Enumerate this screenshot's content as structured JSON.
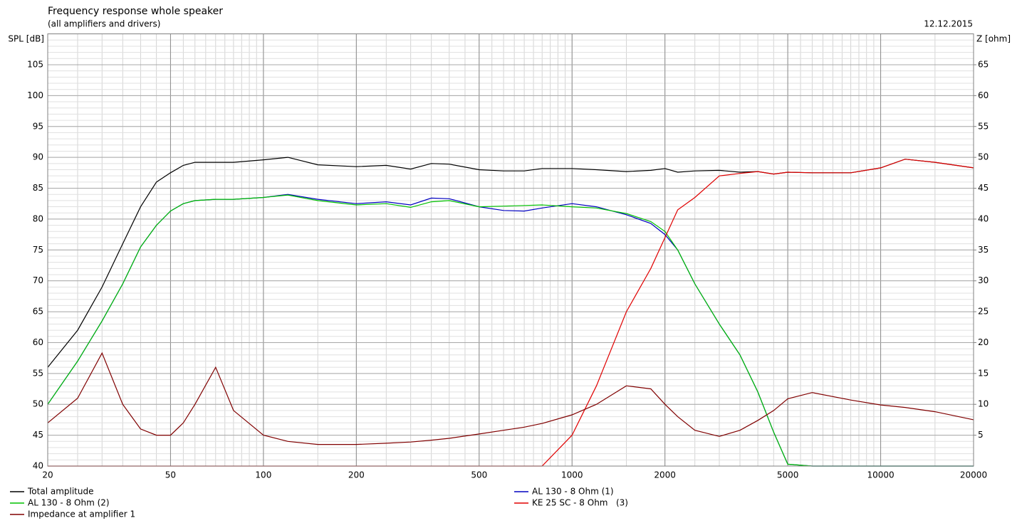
{
  "chart_data": {
    "type": "line",
    "title": "Frequency response whole speaker",
    "subtitle": "(all amplifiers and drivers)",
    "date": "12.12.2015",
    "y_label": "SPL [dB]",
    "y2_label": "Z [ohm]",
    "x_scale": "log",
    "grid": true,
    "legend_position": "bottom",
    "xlim": [
      20,
      20000
    ],
    "xticks": [
      20,
      50,
      100,
      200,
      500,
      1000,
      2000,
      5000,
      10000,
      20000
    ],
    "ylim": [
      40,
      110
    ],
    "yticks": [
      40,
      45,
      50,
      55,
      60,
      65,
      70,
      75,
      80,
      85,
      90,
      95,
      100,
      105
    ],
    "y2lim": [
      0,
      70
    ],
    "y2ticks": [
      5,
      10,
      15,
      20,
      25,
      30,
      35,
      40,
      45,
      50,
      55,
      60,
      65
    ],
    "x": [
      20,
      25,
      30,
      35,
      40,
      45,
      50,
      55,
      60,
      70,
      80,
      100,
      120,
      150,
      200,
      250,
      300,
      350,
      400,
      500,
      600,
      700,
      800,
      1000,
      1200,
      1500,
      1800,
      2000,
      2200,
      2500,
      3000,
      3500,
      4000,
      4500,
      5000,
      6000,
      8000,
      10000,
      12000,
      15000,
      20000
    ],
    "series": [
      {
        "name": "Total amplitude",
        "color": "#000000",
        "values": [
          56,
          62,
          69,
          76,
          82,
          86,
          87.5,
          88.7,
          89.2,
          89.2,
          89.2,
          89.6,
          90,
          88.8,
          88.5,
          88.7,
          88.1,
          89,
          88.9,
          88,
          87.8,
          87.8,
          88.2,
          88.2,
          88,
          87.7,
          87.9,
          88.2,
          87.6,
          87.8,
          87.9,
          87.6,
          87.7,
          87.3,
          87.6,
          87.5,
          87.5,
          88.3,
          89.7,
          89.2,
          88.3
        ]
      },
      {
        "name": "AL 130 - 8 Ohm (1)",
        "color": "#0000c0",
        "values": [
          50,
          57,
          63.5,
          69.5,
          75.5,
          79,
          81.3,
          82.5,
          83,
          83.2,
          83.2,
          83.5,
          84,
          83.2,
          82.5,
          82.8,
          82.3,
          83.4,
          83.3,
          82,
          81.4,
          81.3,
          81.8,
          82.5,
          82,
          80.7,
          79.3,
          77.5,
          75,
          69.5,
          63,
          58,
          52,
          45.5,
          40.3,
          40,
          40,
          40,
          40,
          40,
          40
        ]
      },
      {
        "name": "AL 130 - 8 Ohm (2)",
        "color": "#00c000",
        "values": [
          50,
          57,
          63.5,
          69.5,
          75.5,
          79,
          81.3,
          82.5,
          83,
          83.2,
          83.2,
          83.5,
          83.9,
          83,
          82.3,
          82.5,
          81.9,
          82.8,
          83,
          82,
          82.1,
          82.2,
          82.3,
          82,
          81.8,
          80.9,
          79.6,
          78,
          75,
          69.5,
          63,
          58,
          52,
          45.5,
          40.3,
          40,
          40,
          40,
          40,
          40,
          40
        ]
      },
      {
        "name": "KE 25 SC - 8 Ohm   (3)",
        "color": "#e00000",
        "values": [
          40,
          40,
          40,
          40,
          40,
          40,
          40,
          40,
          40,
          40,
          40,
          40,
          40,
          40,
          40,
          40,
          40,
          40,
          40,
          40,
          40,
          40,
          40,
          45,
          53,
          65,
          72,
          77,
          81.5,
          83.5,
          87,
          87.4,
          87.7,
          87.3,
          87.6,
          87.5,
          87.5,
          88.3,
          89.7,
          89.2,
          88.3
        ]
      },
      {
        "name": "Impedance at amplifier 1",
        "color": "#800000",
        "axis": "y2",
        "values": [
          7,
          11,
          18.3,
          10,
          6,
          5,
          5,
          7,
          10,
          16,
          9,
          5,
          4,
          3.5,
          3.5,
          3.7,
          3.9,
          4.2,
          4.5,
          5.2,
          5.8,
          6.3,
          6.9,
          8.3,
          10,
          13,
          12.5,
          10,
          8,
          5.8,
          4.8,
          5.8,
          7.4,
          9,
          10.9,
          11.9,
          10.7,
          9.9,
          9.5,
          8.8,
          7.5
        ]
      }
    ]
  }
}
